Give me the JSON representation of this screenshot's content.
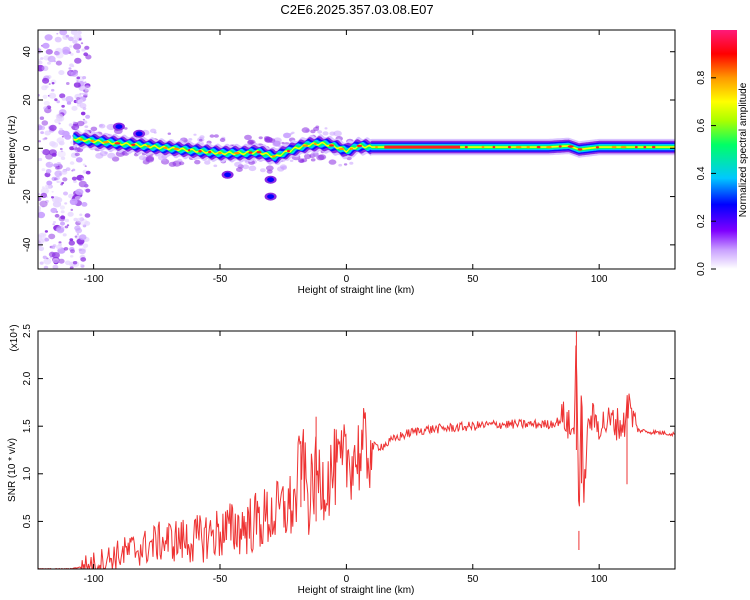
{
  "title": "C2E6.2025.357.03.08.E07",
  "chart_data": [
    {
      "type": "heatmap",
      "xlabel": "Height of straight line (km)",
      "ylabel": "Frequency (Hz)",
      "xlim": [
        -122,
        130
      ],
      "ylim": [
        -50,
        49
      ],
      "xticks": [
        -100,
        -50,
        0,
        50,
        100
      ],
      "yticks": [
        -40,
        -20,
        0,
        20,
        40
      ],
      "colorbar": {
        "label": "Normalized spectral amplitude",
        "range": [
          0.0,
          1.0
        ],
        "ticks": [
          "0.0",
          "0.2",
          "0.4",
          "0.6",
          "0.8"
        ],
        "tick_values": [
          0.0,
          0.2,
          0.4,
          0.6,
          0.8
        ],
        "colors": [
          "#ffffff",
          "#7f00ff",
          "#0000ff",
          "#00c8ff",
          "#00ff66",
          "#aaff00",
          "#ffff00",
          "#ff9900",
          "#ff0000",
          "#ff1a7a"
        ]
      },
      "ridge": {
        "x": [
          -108,
          -100,
          -90,
          -80,
          -70,
          -60,
          -50,
          -45,
          -40,
          -35,
          -30,
          -28,
          -25,
          -20,
          -15,
          -10,
          -5,
          0,
          5,
          10,
          20,
          30,
          40,
          50,
          60,
          70,
          80,
          88,
          92,
          100,
          110,
          120,
          130
        ],
        "y": [
          4,
          3,
          2,
          1,
          0,
          -1,
          -2,
          -2,
          -2,
          -1.5,
          -3,
          -3.5,
          -2,
          0,
          1.5,
          2,
          1,
          -1,
          1,
          0.5,
          0.5,
          0.5,
          0.5,
          0.5,
          0.5,
          0.5,
          0.5,
          1,
          -0.5,
          0.5,
          0.5,
          0.5,
          0.5
        ]
      },
      "blobs": [
        {
          "x": -47,
          "y": -11
        },
        {
          "x": -30,
          "y": -13
        },
        {
          "x": -30,
          "y": -20
        },
        {
          "x": -90,
          "y": 9
        },
        {
          "x": -82,
          "y": 6
        }
      ]
    },
    {
      "type": "line",
      "xlabel": "Height of straight line (km)",
      "ylabel": "SNR (10 * v/v)",
      "y_multiplier": "(x10⁴)",
      "xlim": [
        -122,
        130
      ],
      "ylim": [
        0,
        2.5
      ],
      "xticks": [
        -100,
        -50,
        0,
        50,
        100
      ],
      "yticks": [
        0.5,
        1.0,
        1.5,
        2.0,
        2.5
      ],
      "ytick_labels": [
        "0.5",
        "1.0",
        "1.5",
        "2.0",
        "2.5"
      ],
      "color": "#ee3333",
      "series": [
        {
          "x": [
            -122,
            -110,
            -105,
            -100,
            -95,
            -90,
            -85,
            -80,
            -75,
            -70,
            -65,
            -60,
            -55,
            -50,
            -45,
            -40,
            -35,
            -30,
            -25,
            -20,
            -18,
            -15,
            -12,
            -10,
            -8,
            -5,
            -2,
            0,
            3,
            6,
            10,
            15,
            20,
            25,
            30,
            35,
            40,
            50,
            60,
            70,
            80,
            84,
            86,
            88,
            90,
            91,
            92,
            93,
            94,
            96,
            100,
            105,
            110,
            111,
            115,
            120,
            125,
            130
          ],
          "values": [
            0.0,
            0.0,
            0.02,
            0.05,
            0.1,
            0.15,
            0.2,
            0.22,
            0.28,
            0.3,
            0.3,
            0.3,
            0.35,
            0.38,
            0.42,
            0.45,
            0.5,
            0.55,
            0.62,
            0.68,
            1.3,
            0.7,
            1.0,
            0.95,
            0.9,
            1.05,
            1.05,
            1.15,
            1.18,
            1.22,
            1.28,
            1.3,
            1.38,
            1.43,
            1.46,
            1.47,
            1.48,
            1.5,
            1.52,
            1.52,
            1.52,
            1.55,
            1.6,
            1.5,
            1.4,
            2.5,
            0.4,
            1.8,
            0.8,
            1.6,
            1.52,
            1.55,
            1.5,
            1.78,
            1.46,
            1.44,
            1.43,
            1.42
          ]
        }
      ]
    }
  ]
}
